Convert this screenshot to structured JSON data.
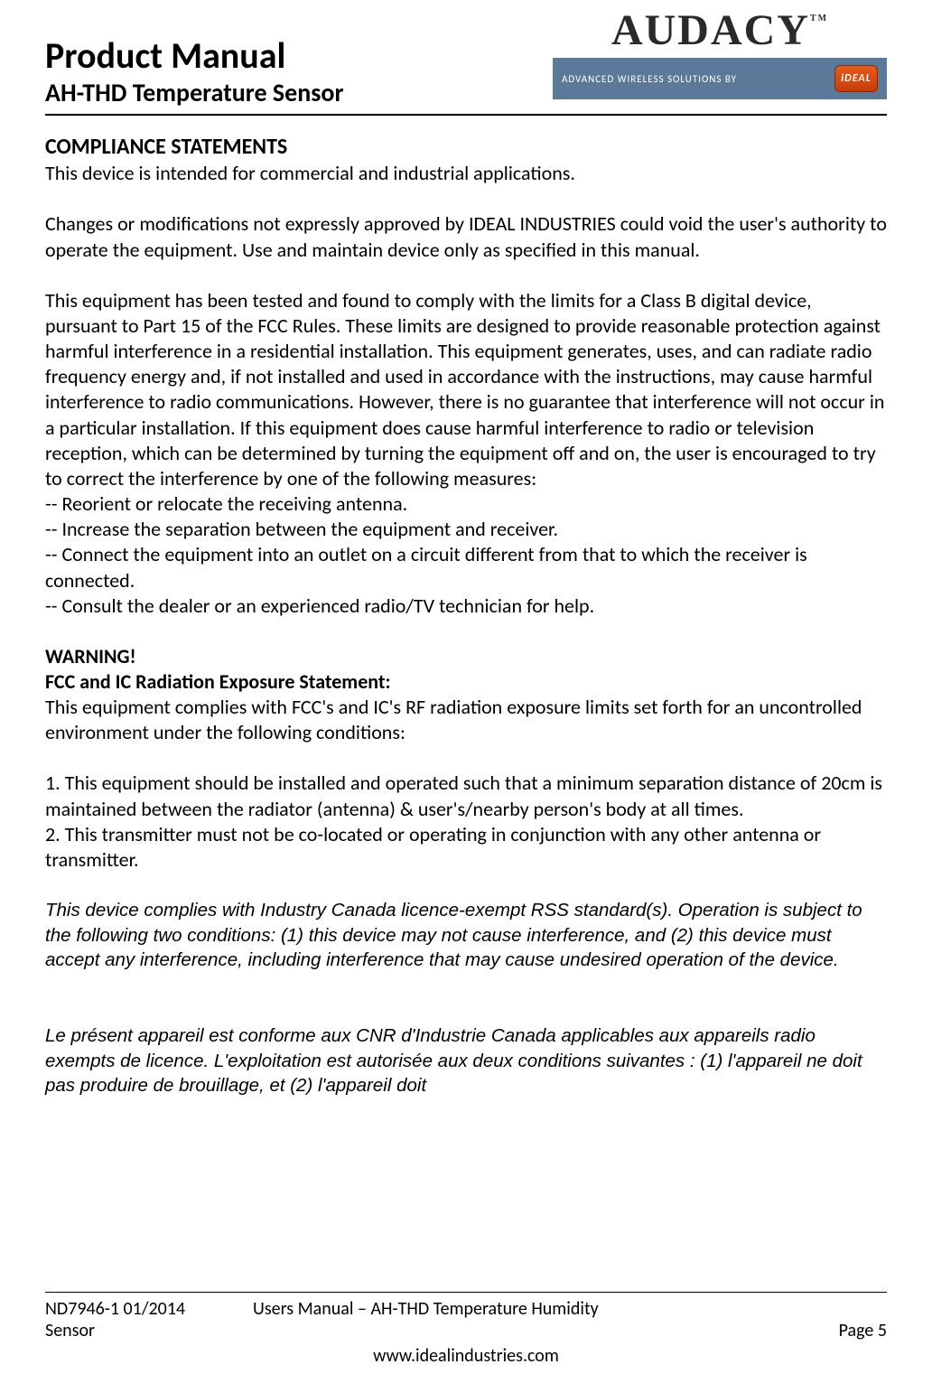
{
  "header": {
    "title": "Product Manual",
    "subtitle": "AH-THD Temperature Sensor",
    "logo_brand": "AUDACY",
    "logo_tm": "TM",
    "logo_tagline": "ADVANCED WIRELESS SOLUTIONS BY",
    "logo_badge": "iDEAL"
  },
  "section": {
    "heading": "COMPLIANCE STATEMENTS",
    "p1": "This device is intended for commercial and industrial applications.",
    "p2": "Changes or modifications not expressly approved by IDEAL INDUSTRIES could void the user's authority to operate the equipment.  Use and maintain device only as specified in this manual.",
    "p3": "This equipment has been tested and found to comply with the limits for a Class B digital device, pursuant to Part 15 of the FCC Rules.  These limits are designed to provide reasonable protection against harmful interference in a residential installation. This equipment generates, uses, and can radiate radio frequency energy and, if not installed and used in accordance with the instructions, may cause harmful interference to radio communications.  However, there is no guarantee that interference will not occur in a particular installation.  If this equipment does cause harmful interference to radio or television reception, which can be determined by turning the equipment off and on, the user is encouraged to try to correct the interference by one of the following measures:",
    "b1": "-- Reorient or relocate the receiving antenna.",
    "b2": "-- Increase the separation between the equipment and receiver.",
    "b3": "-- Connect the equipment into an outlet on a circuit different from that to which the receiver is connected.",
    "b4": "-- Consult the dealer or an experienced radio/TV technician for help.",
    "warn": "WARNING!",
    "fcc_head": "FCC and IC Radiation Exposure Statement:",
    "fcc_p": "This equipment complies with FCC's and IC's RF radiation exposure limits set forth for an uncontrolled environment under the following conditions:",
    "n1": "1. This equipment should be installed and operated such that a minimum separation distance of 20cm is maintained between the radiator (antenna) & user's/nearby person's body at all times.",
    "n2": "2. This transmitter must not be co-located or operating in conjunction with any other antenna or transmitter.",
    "ic_en": "This device complies with Industry Canada licence-exempt RSS standard(s). Operation is subject to the following two conditions: (1) this device may not cause interference, and (2) this device must accept any interference, including interference that may cause undesired operation of the device.",
    "ic_fr": "Le présent appareil est conforme aux CNR d'Industrie Canada applicables aux appareils radio exempts de licence. L'exploitation est autorisée aux deux conditions suivantes : (1) l'appareil ne doit pas produire de brouillage, et (2) l'appareil doit"
  },
  "footer": {
    "doc_id": "ND7946-1  01/2014",
    "sensor_word": "Sensor",
    "center": "Users Manual – AH-THD Temperature Humidity",
    "url": "www.idealindustries.com",
    "page": "Page 5"
  }
}
